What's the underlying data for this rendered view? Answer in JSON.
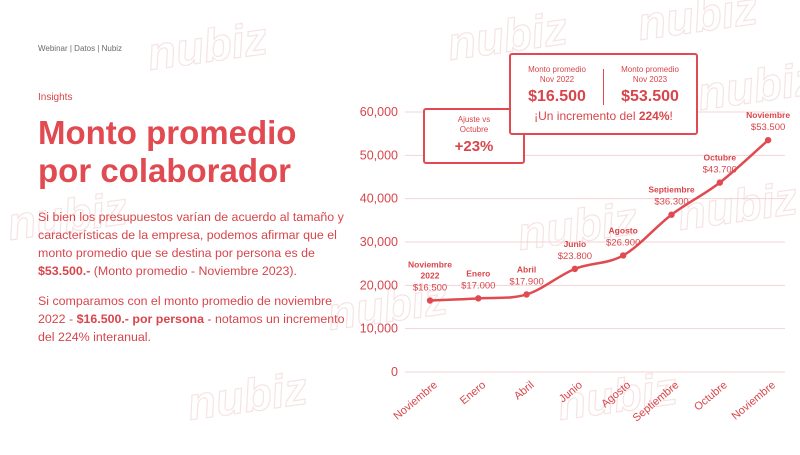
{
  "header": {
    "breadcrumb": "Webinar | Datos | Nubiz"
  },
  "watermark": "nubiz",
  "section": {
    "label": "Insights"
  },
  "title": "Monto promedio\npor colaborador",
  "paragraph1": {
    "text": "Si bien los presupuestos varían de acuerdo al tamaño y características de la empresa, podemos afirmar que el monto promedio que se destina por persona es de ",
    "bold": "$53.500.-",
    "tail": " (Monto promedio - Noviembre 2023)."
  },
  "paragraph2": {
    "text": "Si comparamos con el monto promedio de noviembre 2022 - ",
    "bold": "$16.500.- por persona",
    "tail": " - notamos un incremento del 224% interanual."
  },
  "callout_adjust": {
    "label": "Ajuste vs\nOctubre",
    "value": "+23%"
  },
  "callout_compare": {
    "left_label": "Monto promedio\nNov 2022",
    "left_value": "$16.500",
    "right_label": "Monto promedio\nNov 2023",
    "right_value": "$53.500",
    "note_prefix": "¡Un incremento del ",
    "note_bold": "224%",
    "note_suffix": "!"
  },
  "colors": {
    "accent": "#e04a50",
    "text": "#d8454b",
    "grid": "#f3d3d4",
    "muted": "#6a6a6a"
  },
  "chart_data": {
    "type": "line",
    "categories": [
      "Noviembre 2022",
      "Enero",
      "Abril",
      "Junio",
      "Agosto",
      "Septiembre",
      "Octubre",
      "Noviembre"
    ],
    "x_tick_labels": [
      "Noviembre",
      "Enero",
      "Abril",
      "Junio",
      "Agosto",
      "Septiembre",
      "Octubre",
      "Noviembre"
    ],
    "point_labels": [
      "Noviembre\n2022",
      "Enero",
      "Abril",
      "Junio",
      "Agosto",
      "Septiembre",
      "Octubre",
      "Noviembre"
    ],
    "value_labels": [
      "$16.500",
      "$17.000",
      "$17.900",
      "$23.800",
      "$26.900",
      "$36.300",
      "$43.700",
      "$53.500"
    ],
    "values": [
      16500,
      17000,
      17900,
      23800,
      26900,
      36300,
      43700,
      53500
    ],
    "y_ticks": [
      0,
      10000,
      20000,
      30000,
      40000,
      50000,
      60000
    ],
    "y_tick_labels": [
      "0",
      "10,000",
      "20,000",
      "30,000",
      "40,000",
      "50,000",
      "60,000"
    ],
    "ylim": [
      0,
      60000
    ],
    "grid": true,
    "title": "",
    "xlabel": "",
    "ylabel": ""
  }
}
